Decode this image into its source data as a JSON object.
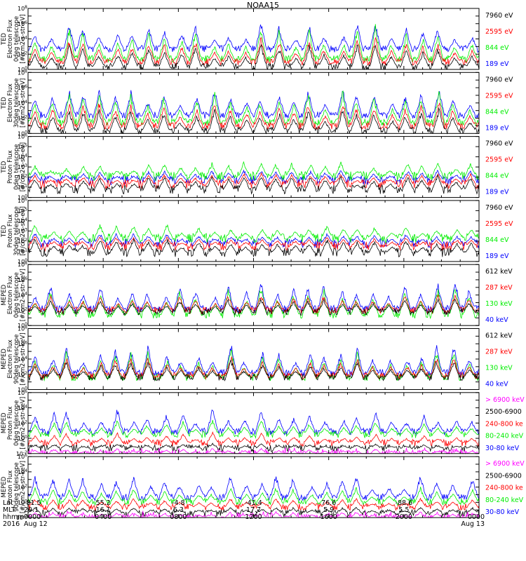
{
  "title": "NOAA15",
  "colors": {
    "black": "#000000",
    "red": "#ff0000",
    "green": "#00ee00",
    "blue": "#0000ff",
    "magenta": "#ff00ff"
  },
  "panels": [
    {
      "ylabel": [
        "TED",
        "Electron Flux",
        "0deg telescope",
        "[#/cm2-s-str-eV]"
      ],
      "yticks": [
        "10^0",
        "10^2",
        "10^4",
        "10^6",
        "10^8"
      ],
      "ylog": [
        0,
        8
      ],
      "legend": [
        {
          "label": "7960 eV",
          "color": "#000000"
        },
        {
          "label": "2595 eV",
          "color": "#ff0000"
        },
        {
          "label": "844 eV",
          "color": "#00ee00"
        },
        {
          "label": "189 eV",
          "color": "#0000ff"
        }
      ],
      "baseline": {
        "blue": 2.7,
        "green": 1.4,
        "red": 1.0,
        "black": 0.4
      },
      "peak": {
        "blue": 6.5,
        "green": 6.2,
        "red": 4.6,
        "black": 3.8
      },
      "seed": 11
    },
    {
      "ylabel": [
        "TED",
        "Electron Flux",
        "30deg telescope",
        "[#/cm2-s-str-eV]"
      ],
      "yticks": [
        "10^0",
        "10^2",
        "10^4",
        "10^6",
        "10^8"
      ],
      "ylog": [
        0,
        8
      ],
      "legend": [
        {
          "label": "7960 eV",
          "color": "#000000"
        },
        {
          "label": "2595 eV",
          "color": "#ff0000"
        },
        {
          "label": "844 eV",
          "color": "#00ee00"
        },
        {
          "label": "189 eV",
          "color": "#0000ff"
        }
      ],
      "baseline": {
        "blue": 2.4,
        "green": 1.5,
        "red": 1.0,
        "black": 0.4
      },
      "peak": {
        "blue": 6.3,
        "green": 6.1,
        "red": 4.6,
        "black": 3.6
      },
      "seed": 23
    },
    {
      "ylabel": [
        "TED",
        "Proton Flux",
        "0deg telescope",
        "[#/cm2-s-str-eV]"
      ],
      "yticks": [
        "10^0",
        "10^1",
        "10^2",
        "10^3",
        "10^4",
        "10^5",
        "10^6"
      ],
      "ylog": [
        0,
        6
      ],
      "legend": [
        {
          "label": "7960 eV",
          "color": "#000000"
        },
        {
          "label": "2595 eV",
          "color": "#ff0000"
        },
        {
          "label": "844 eV",
          "color": "#00ee00"
        },
        {
          "label": "189 eV",
          "color": "#0000ff"
        }
      ],
      "baseline": {
        "blue": 1.7,
        "green": 2.1,
        "red": 1.3,
        "black": 0.8
      },
      "peak": {
        "blue": 2.8,
        "green": 3.6,
        "red": 2.5,
        "black": 2.3
      },
      "seed": 37
    },
    {
      "ylabel": [
        "TED",
        "Proton Flux",
        "30deg telescope",
        "[#/cm2-s-str-eV]"
      ],
      "yticks": [
        "10^0",
        "10^1",
        "10^2",
        "10^3",
        "10^4",
        "10^5",
        "10^6"
      ],
      "ylog": [
        0,
        6
      ],
      "legend": [
        {
          "label": "7960 eV",
          "color": "#000000"
        },
        {
          "label": "2595 eV",
          "color": "#ff0000"
        },
        {
          "label": "844 eV",
          "color": "#00ee00"
        },
        {
          "label": "189 eV",
          "color": "#0000ff"
        }
      ],
      "baseline": {
        "blue": 1.8,
        "green": 2.3,
        "red": 1.5,
        "black": 0.9
      },
      "peak": {
        "blue": 2.9,
        "green": 3.8,
        "red": 2.6,
        "black": 2.4
      },
      "seed": 41
    },
    {
      "ylabel": [
        "MEPED",
        "Electron Flux",
        "0deg telescope",
        "[#/cm2-s-str-keV]"
      ],
      "yticks": [
        "10^0",
        "10^2",
        "10^4",
        "10^6",
        "10^8"
      ],
      "ylog": [
        0,
        8
      ],
      "legend": [
        {
          "label": "612 keV",
          "color": "#000000"
        },
        {
          "label": "287 keV",
          "color": "#ff0000"
        },
        {
          "label": "130 keV",
          "color": "#00ee00"
        },
        {
          "label": "40 keV",
          "color": "#0000ff"
        }
      ],
      "baseline": {
        "blue": 2.2,
        "green": 1.4,
        "red": 2.0,
        "black": 1.8
      },
      "peak": {
        "blue": 6.6,
        "green": 5.8,
        "red": 4.6,
        "black": 3.9
      },
      "seed": 53
    },
    {
      "ylabel": [
        "MEPED",
        "Electron Flux",
        "90deg telescope",
        "[#/cm2-s-str-keV]"
      ],
      "yticks": [
        "10^0",
        "10^2",
        "10^4",
        "10^6",
        "10^8"
      ],
      "ylog": [
        0,
        8
      ],
      "legend": [
        {
          "label": "612 keV",
          "color": "#000000"
        },
        {
          "label": "287 keV",
          "color": "#ff0000"
        },
        {
          "label": "130 keV",
          "color": "#00ee00"
        },
        {
          "label": "40 keV",
          "color": "#0000ff"
        }
      ],
      "baseline": {
        "blue": 2.2,
        "green": 1.6,
        "red": 1.8,
        "black": 1.6
      },
      "peak": {
        "blue": 6.6,
        "green": 6.0,
        "red": 4.9,
        "black": 4.3
      },
      "seed": 67
    },
    {
      "ylabel": [
        "MEPED",
        "Proton Flux",
        "0deg telescope",
        "[#/cm2-s-str-keV]"
      ],
      "yticks": [
        "10^-2",
        "10^0",
        "10^2",
        "10^4",
        "10^6"
      ],
      "ylog": [
        -2,
        6
      ],
      "legend": [
        {
          "label": "> 6900 keV",
          "color": "#ff00ff"
        },
        {
          "label": "2500-6900",
          "color": "#000000"
        },
        {
          "label": "240-800 ke",
          "color": "#ff0000"
        },
        {
          "label": "80-240 keV",
          "color": "#00ee00"
        },
        {
          "label": "30-80 keV",
          "color": "#0000ff"
        }
      ],
      "baseline": {
        "blue": 0.9,
        "green": 0.5,
        "red": -0.6,
        "black": -1.3,
        "magenta": -2.0
      },
      "peak": {
        "blue": 4.4,
        "green": 2.8,
        "red": 1.0,
        "black": -0.6,
        "magenta": -1.2
      },
      "seed": 79
    },
    {
      "ylabel": [
        "MEPED",
        "Proton Flux",
        "90deg telescope",
        "[#/cm2-s-str-keV]"
      ],
      "yticks": [
        "10^-2",
        "10^0",
        "10^2",
        "10^4",
        "10^6"
      ],
      "ylog": [
        -2,
        6
      ],
      "legend": [
        {
          "label": "> 6900 keV",
          "color": "#ff00ff"
        },
        {
          "label": "2500-6900",
          "color": "#000000"
        },
        {
          "label": "240-800 ke",
          "color": "#ff0000"
        },
        {
          "label": "80-240 keV",
          "color": "#00ee00"
        },
        {
          "label": "30-80 keV",
          "color": "#0000ff"
        }
      ],
      "baseline": {
        "blue": 0.7,
        "green": 0.1,
        "red": -0.6,
        "black": -1.4,
        "magenta": -2.0
      },
      "peak": {
        "blue": 4.0,
        "green": 2.2,
        "red": 0.7,
        "black": -0.5,
        "magenta": -1.1
      },
      "seed": 83
    }
  ],
  "time_axis": {
    "row_labels": [
      "Lat",
      "MLT",
      "hhmm",
      "2016"
    ],
    "columns": [
      {
        "lat": "-81.5",
        "mlt": "20.1",
        "hhmm": "0000",
        "date": "Aug 12"
      },
      {
        "lat": "55.2",
        "mlt": "16.1",
        "hhmm": "0400",
        "date": ""
      },
      {
        "lat": "-4.8",
        "mlt": "6.3",
        "hhmm": "0800",
        "date": ""
      },
      {
        "lat": "-41.4",
        "mlt": "17.7",
        "hhmm": "1200",
        "date": ""
      },
      {
        "lat": "76.6",
        "mlt": "5.9",
        "hhmm": "1600",
        "date": ""
      },
      {
        "lat": "-88.6",
        "mlt": "5.5",
        "hhmm": "2000",
        "date": ""
      },
      {
        "lat": "",
        "mlt": "",
        "hhmm": "0000",
        "date": "Aug 13"
      }
    ]
  },
  "chart_data": {
    "type": "line",
    "title": "NOAA15",
    "x_range_hours": [
      0,
      24
    ],
    "x_ticks": [
      "0000",
      "0400",
      "0800",
      "1200",
      "1600",
      "2000",
      "0000"
    ],
    "orbit_passes_per_day": 28,
    "panels": [
      {
        "name": "TED Electron Flux 0deg telescope",
        "units": "#/cm2-s-str-eV",
        "ylog_range": [
          0,
          8
        ],
        "series": [
          {
            "name": "7960 eV",
            "typical": [
              1.0,
              10000.0
            ]
          },
          {
            "name": "2595 eV",
            "typical": [
              10.0,
              100000.0
            ]
          },
          {
            "name": "844 eV",
            "typical": [
              10.0,
              1000000.0
            ]
          },
          {
            "name": "189 eV",
            "typical": [
              100.0,
              1000000.0
            ]
          }
        ]
      },
      {
        "name": "TED Electron Flux 30deg telescope",
        "units": "#/cm2-s-str-eV",
        "ylog_range": [
          0,
          8
        ],
        "series": [
          {
            "name": "7960 eV",
            "typical": [
              1.0,
              10000.0
            ]
          },
          {
            "name": "2595 eV",
            "typical": [
              10.0,
              100000.0
            ]
          },
          {
            "name": "844 eV",
            "typical": [
              10.0,
              1000000.0
            ]
          },
          {
            "name": "189 eV",
            "typical": [
              100.0,
              1000000.0
            ]
          }
        ]
      },
      {
        "name": "TED Proton Flux 0deg telescope",
        "units": "#/cm2-s-str-eV",
        "ylog_range": [
          0,
          6
        ],
        "series": [
          {
            "name": "7960 eV",
            "typical": [
              1.0,
              1000.0
            ]
          },
          {
            "name": "2595 eV",
            "typical": [
              10.0,
              1000.0
            ]
          },
          {
            "name": "844 eV",
            "typical": [
              100.0,
              10000.0
            ]
          },
          {
            "name": "189 eV",
            "typical": [
              10.0,
              1000.0
            ]
          }
        ]
      },
      {
        "name": "TED Proton Flux 30deg telescope",
        "units": "#/cm2-s-str-eV",
        "ylog_range": [
          0,
          6
        ],
        "series": [
          {
            "name": "7960 eV",
            "typical": [
              1.0,
              1000.0
            ]
          },
          {
            "name": "2595 eV",
            "typical": [
              10.0,
              1000.0
            ]
          },
          {
            "name": "844 eV",
            "typical": [
              100.0,
              10000.0
            ]
          },
          {
            "name": "189 eV",
            "typical": [
              10.0,
              1000.0
            ]
          }
        ]
      },
      {
        "name": "MEPED Electron Flux 0deg telescope",
        "units": "#/cm2-s-str-keV",
        "ylog_range": [
          0,
          8
        ],
        "series": [
          {
            "name": "612 keV",
            "typical": [
              100.0,
              10000.0
            ]
          },
          {
            "name": "287 keV",
            "typical": [
              100.0,
              100000.0
            ]
          },
          {
            "name": "130 keV",
            "typical": [
              10.0,
              1000000.0
            ]
          },
          {
            "name": "40 keV",
            "typical": [
              100.0,
              10000000.0
            ]
          }
        ]
      },
      {
        "name": "MEPED Electron Flux 90deg telescope",
        "units": "#/cm2-s-str-keV",
        "ylog_range": [
          0,
          8
        ],
        "series": [
          {
            "name": "612 keV",
            "typical": [
              100.0,
              10000.0
            ]
          },
          {
            "name": "287 keV",
            "typical": [
              100.0,
              100000.0
            ]
          },
          {
            "name": "130 keV",
            "typical": [
              10.0,
              1000000.0
            ]
          },
          {
            "name": "40 keV",
            "typical": [
              100.0,
              10000000.0
            ]
          }
        ]
      },
      {
        "name": "MEPED Proton Flux 0deg telescope",
        "units": "#/cm2-s-str-keV",
        "ylog_range": [
          -2,
          6
        ],
        "series": [
          {
            "name": "> 6900 keV",
            "typical": [
              0.01,
              0.1
            ]
          },
          {
            "name": "2500-6900",
            "typical": [
              0.01,
              1.0
            ]
          },
          {
            "name": "240-800 ke",
            "typical": [
              0.1,
              10.0
            ]
          },
          {
            "name": "80-240 keV",
            "typical": [
              1.0,
              1000.0
            ]
          },
          {
            "name": "30-80 keV",
            "typical": [
              1.0,
              10000.0
            ]
          }
        ]
      },
      {
        "name": "MEPED Proton Flux 90deg telescope",
        "units": "#/cm2-s-str-keV",
        "ylog_range": [
          -2,
          6
        ],
        "series": [
          {
            "name": "> 6900 keV",
            "typical": [
              0.01,
              0.1
            ]
          },
          {
            "name": "2500-6900",
            "typical": [
              0.01,
              1.0
            ]
          },
          {
            "name": "240-800 ke",
            "typical": [
              0.1,
              10.0
            ]
          },
          {
            "name": "80-240 keV",
            "typical": [
              1.0,
              1000.0
            ]
          },
          {
            "name": "30-80 keV",
            "typical": [
              1.0,
              10000.0
            ]
          }
        ]
      }
    ]
  }
}
